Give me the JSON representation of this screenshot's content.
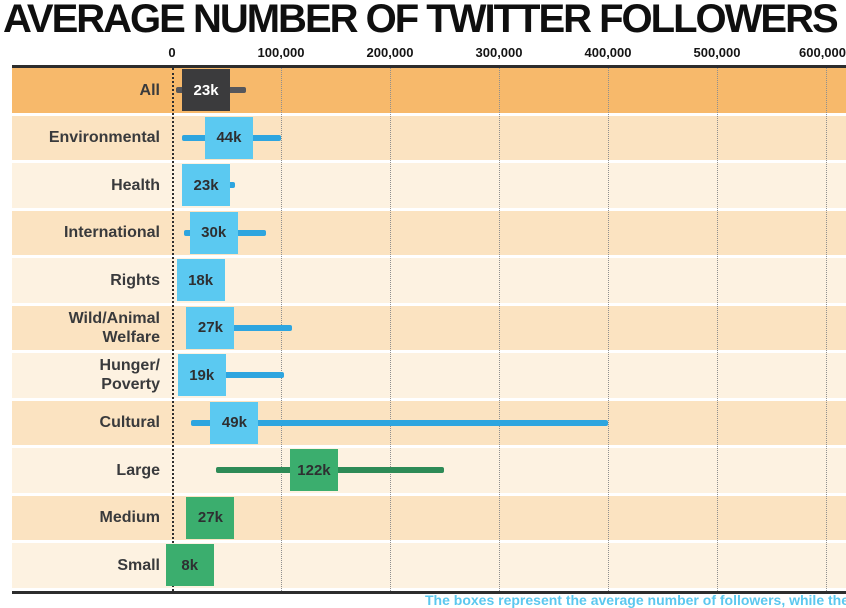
{
  "title": "AVERAGE NUMBER OF TWITTER FOLLOWERS",
  "caption": {
    "text": "The boxes represent the average number of followers, while the lines represent the range."
  },
  "colors": {
    "band_orange": "#F7B96B",
    "band_peach": "#FBE3C1",
    "band_cream": "#FDF2E1",
    "box_overall": "#3B3B3D",
    "whisker_overall": "#57575B",
    "box_cause": "#5BC9F1",
    "whisker_cause": "#2EA5DF",
    "box_size": "#3BAE6E",
    "whisker_size": "#2E8B56",
    "label_text": "#393A3C",
    "box_text_light": "#FFFFFF",
    "box_text_dark": "#2E2F31",
    "axis_line": "#2D2D2D",
    "caption_blue": "#5BC8EF"
  },
  "chart_data": {
    "type": "bar",
    "variant": "horizontal-box-range-plot",
    "title": "AVERAGE NUMBER OF TWITTER FOLLOWERS",
    "xlabel": "",
    "ylabel": "",
    "xlim": [
      0,
      620000
    ],
    "grid": "vertical-dotted",
    "x_axis": {
      "ticks": [
        0,
        100000,
        200000,
        300000,
        400000,
        500000,
        600000
      ],
      "tick_labels": [
        "0",
        "100,000",
        "200,000",
        "300,000",
        "400,000",
        "500,000",
        "600,000"
      ]
    },
    "rows": [
      {
        "label": "All",
        "label_lines": [
          "All"
        ],
        "band": "orange",
        "series": "overall",
        "value_k": 23,
        "value_label": "23k",
        "range_low_k": 4,
        "range_high_k": 68
      },
      {
        "label": "Environmental",
        "label_lines": [
          "Environmental"
        ],
        "band": "peach",
        "series": "cause",
        "value_k": 44,
        "value_label": "44k",
        "range_low_k": 9,
        "range_high_k": 100
      },
      {
        "label": "Health",
        "label_lines": [
          "Health"
        ],
        "band": "cream",
        "series": "cause",
        "value_k": 23,
        "value_label": "23k",
        "range_low_k": 15,
        "range_high_k": 58
      },
      {
        "label": "International",
        "label_lines": [
          "International"
        ],
        "band": "peach",
        "series": "cause",
        "value_k": 30,
        "value_label": "30k",
        "range_low_k": 11,
        "range_high_k": 86
      },
      {
        "label": "Rights",
        "label_lines": [
          "Rights"
        ],
        "band": "cream",
        "series": "cause",
        "value_k": 18,
        "value_label": "18k",
        "range_low_k": 18,
        "range_high_k": 18
      },
      {
        "label": "Wild/Animal Welfare",
        "label_lines": [
          "Wild/Animal",
          "Welfare"
        ],
        "band": "peach",
        "series": "cause",
        "value_k": 27,
        "value_label": "27k",
        "range_low_k": 20,
        "range_high_k": 110
      },
      {
        "label": "Hunger/Poverty",
        "label_lines": [
          "Hunger/",
          "Poverty"
        ],
        "band": "cream",
        "series": "cause",
        "value_k": 19,
        "value_label": "19k",
        "range_low_k": 12,
        "range_high_k": 103
      },
      {
        "label": "Cultural",
        "label_lines": [
          "Cultural"
        ],
        "band": "peach",
        "series": "cause",
        "value_k": 49,
        "value_label": "49k",
        "range_low_k": 17,
        "range_high_k": 400
      },
      {
        "label": "Large",
        "label_lines": [
          "Large"
        ],
        "band": "cream",
        "series": "size",
        "value_k": 122,
        "value_label": "122k",
        "range_low_k": 40,
        "range_high_k": 250
      },
      {
        "label": "Medium",
        "label_lines": [
          "Medium"
        ],
        "band": "peach",
        "series": "size",
        "value_k": 27,
        "value_label": "27k",
        "range_low_k": 27,
        "range_high_k": 27
      },
      {
        "label": "Small",
        "label_lines": [
          "Small"
        ],
        "band": "cream",
        "series": "size",
        "value_k": 8,
        "value_label": "8k",
        "range_low_k": 8,
        "range_high_k": 8
      }
    ]
  }
}
